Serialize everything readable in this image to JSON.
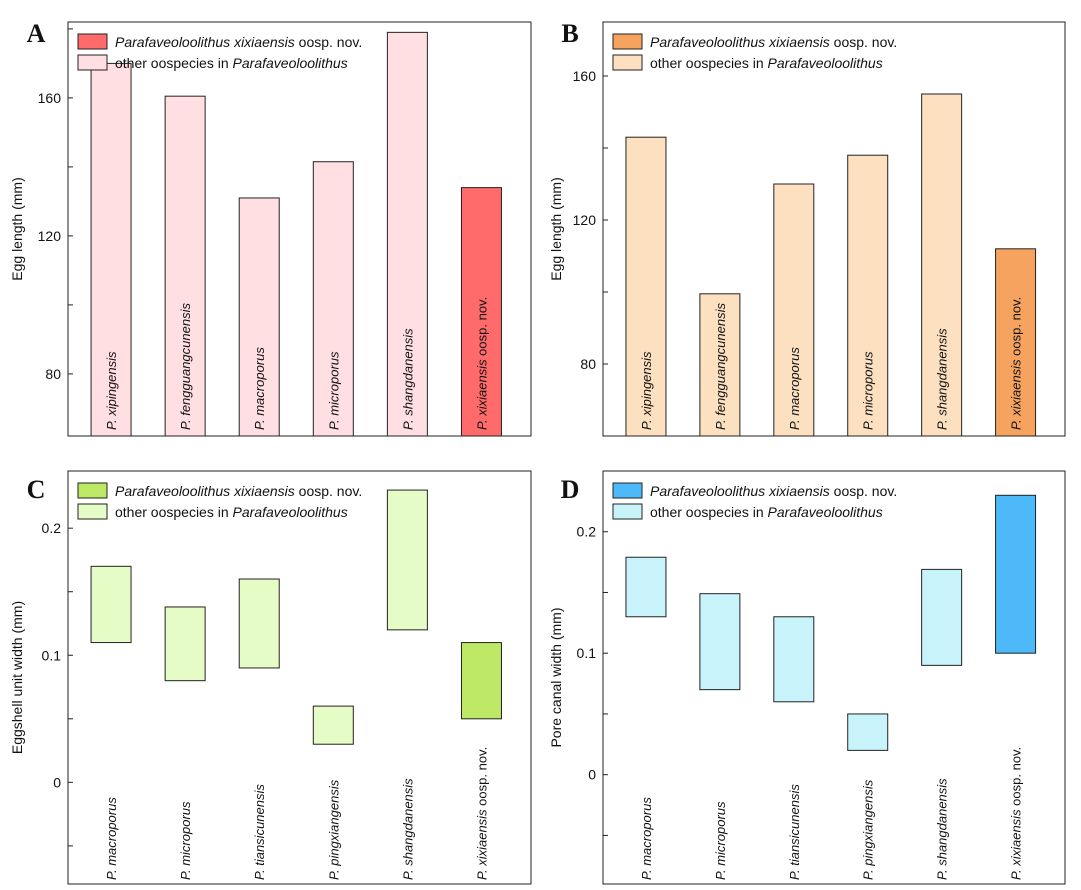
{
  "legend_common": {
    "highlight_italic": "Parafaveoloolithus xixiaensis",
    "highlight_suffix": " oosp. nov.",
    "other_prefix": "other oospecies in ",
    "other_italic": "Parafaveoloolithus"
  },
  "chart_data": [
    {
      "panel": "A",
      "type": "bar",
      "ylabel": "Egg length (mm)",
      "ylim": [
        62,
        182
      ],
      "yticks": [
        80,
        120,
        160
      ],
      "grid": false,
      "legend_position": "top-left",
      "colors": {
        "highlight_fill": "#ff6b6b",
        "other_fill": "#ffdfe2",
        "stroke": "#222222"
      },
      "categories": [
        {
          "italic": "P. xipingensis",
          "suffix": ""
        },
        {
          "italic": "P. fengguangcunensis",
          "suffix": ""
        },
        {
          "italic": "P. macroporus",
          "suffix": ""
        },
        {
          "italic": "P. microporus",
          "suffix": ""
        },
        {
          "italic": "P. shangdanensis",
          "suffix": ""
        },
        {
          "italic": "P. xixiaensis",
          "suffix": " oosp. nov."
        }
      ],
      "values": [
        170,
        160.5,
        131,
        141.5,
        179,
        134
      ],
      "highlight_index": 5
    },
    {
      "panel": "B",
      "type": "bar",
      "ylabel": "Egg length (mm)",
      "ylim": [
        60,
        175
      ],
      "yticks": [
        80,
        120,
        160
      ],
      "grid": false,
      "legend_position": "top-left",
      "colors": {
        "highlight_fill": "#f5a35f",
        "other_fill": "#fde0c0",
        "stroke": "#222222"
      },
      "categories": [
        {
          "italic": "P. xipingensis",
          "suffix": ""
        },
        {
          "italic": "P. fengguangcunensis",
          "suffix": ""
        },
        {
          "italic": "P. macroporus",
          "suffix": ""
        },
        {
          "italic": "P. microporus",
          "suffix": ""
        },
        {
          "italic": "P. shangdanensis",
          "suffix": ""
        },
        {
          "italic": "P. xixiaensis",
          "suffix": " oosp. nov."
        }
      ],
      "values": [
        143,
        99.5,
        130,
        138,
        155,
        112
      ],
      "highlight_index": 5
    },
    {
      "panel": "C",
      "type": "range-bar",
      "ylabel": "Eggshell unit width (mm)",
      "ylim": [
        -0.08,
        0.245
      ],
      "yticks": [
        0,
        0.1,
        0.2
      ],
      "ytick_labels": [
        "0",
        "0.1",
        "0.2"
      ],
      "grid": false,
      "legend_position": "top-left",
      "colors": {
        "highlight_fill": "#bde866",
        "other_fill": "#e6fcc6",
        "stroke": "#222222"
      },
      "categories": [
        {
          "italic": "P. macroporus",
          "suffix": ""
        },
        {
          "italic": "P. microporus",
          "suffix": ""
        },
        {
          "italic": "P. tiansicunensis",
          "suffix": ""
        },
        {
          "italic": "P. pingxiangensis",
          "suffix": ""
        },
        {
          "italic": "P. shangdanensis",
          "suffix": ""
        },
        {
          "italic": "P. xixiaensis",
          "suffix": " oosp. nov."
        }
      ],
      "ranges": [
        [
          0.11,
          0.17
        ],
        [
          0.08,
          0.138
        ],
        [
          0.09,
          0.16
        ],
        [
          0.03,
          0.06
        ],
        [
          0.12,
          0.23
        ],
        [
          0.05,
          0.11
        ]
      ],
      "highlight_index": 5
    },
    {
      "panel": "D",
      "type": "range-bar",
      "ylabel": "Pore canal  width (mm)",
      "ylim": [
        -0.09,
        0.25
      ],
      "yticks": [
        0,
        0.1,
        0.2
      ],
      "ytick_labels": [
        "0",
        "0.1",
        "0.2"
      ],
      "grid": false,
      "legend_position": "top-left",
      "colors": {
        "highlight_fill": "#4db9f9",
        "other_fill": "#c8f3fb",
        "stroke": "#222222"
      },
      "categories": [
        {
          "italic": "P. macroporus",
          "suffix": ""
        },
        {
          "italic": "P. microporus",
          "suffix": ""
        },
        {
          "italic": "P. tiansicunensis",
          "suffix": ""
        },
        {
          "italic": "P. pingxiangensis",
          "suffix": ""
        },
        {
          "italic": "P. shangdanensis",
          "suffix": ""
        },
        {
          "italic": "P. xixiaensis",
          "suffix": " oosp. nov."
        }
      ],
      "ranges": [
        [
          0.13,
          0.179
        ],
        [
          0.07,
          0.149
        ],
        [
          0.06,
          0.13
        ],
        [
          0.02,
          0.05
        ],
        [
          0.09,
          0.169
        ],
        [
          0.1,
          0.23
        ]
      ],
      "highlight_index": 5
    }
  ]
}
